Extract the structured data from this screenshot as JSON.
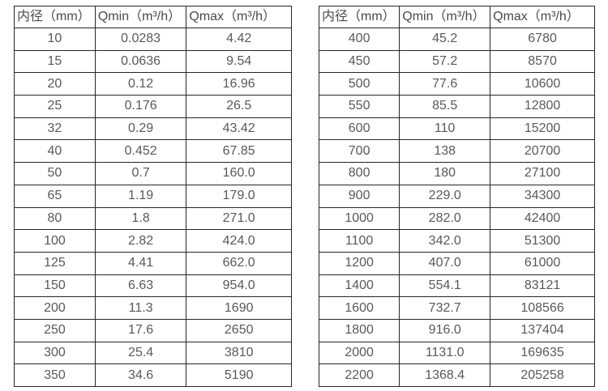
{
  "colors": {
    "border": "#262626",
    "header_text": "#4a4a4a",
    "cell_text": "#595959",
    "background": "#ffffff"
  },
  "tables": [
    {
      "name": "flow-spec-table-small-diameters",
      "headers": [
        "内径（mm）",
        "Qmin（m³/h）",
        "Qmax（m³/h）"
      ],
      "rows": [
        [
          "10",
          "0.0283",
          "4.42"
        ],
        [
          "15",
          "0.0636",
          "9.54"
        ],
        [
          "20",
          "0.12",
          "16.96"
        ],
        [
          "25",
          "0.176",
          "26.5"
        ],
        [
          "32",
          "0.29",
          "43.42"
        ],
        [
          "40",
          "0.452",
          "67.85"
        ],
        [
          "50",
          "0.7",
          "160.0"
        ],
        [
          "65",
          "1.19",
          "179.0"
        ],
        [
          "80",
          "1.8",
          "271.0"
        ],
        [
          "100",
          "2.82",
          "424.0"
        ],
        [
          "125",
          "4.41",
          "662.0"
        ],
        [
          "150",
          "6.63",
          "954.0"
        ],
        [
          "200",
          "11.3",
          "1690"
        ],
        [
          "250",
          "17.6",
          "2650"
        ],
        [
          "300",
          "25.4",
          "3810"
        ],
        [
          "350",
          "34.6",
          "5190"
        ]
      ]
    },
    {
      "name": "flow-spec-table-large-diameters",
      "headers": [
        "内径（mm）",
        "Qmin（m³/h）",
        "Qmax（m³/h）"
      ],
      "rows": [
        [
          "400",
          "45.2",
          "6780"
        ],
        [
          "450",
          "57.2",
          "8570"
        ],
        [
          "500",
          "77.6",
          "10600"
        ],
        [
          "550",
          "85.5",
          "12800"
        ],
        [
          "600",
          "110",
          "15200"
        ],
        [
          "700",
          "138",
          "20700"
        ],
        [
          "800",
          "180",
          "27100"
        ],
        [
          "900",
          "229.0",
          "34300"
        ],
        [
          "1000",
          "282.0",
          "42400"
        ],
        [
          "1100",
          "342.0",
          "51300"
        ],
        [
          "1200",
          "407.0",
          "61000"
        ],
        [
          "1400",
          "554.1",
          "83121"
        ],
        [
          "1600",
          "732.7",
          "108566"
        ],
        [
          "1800",
          "916.0",
          "137404"
        ],
        [
          "2000",
          "1131.0",
          "169635"
        ],
        [
          "2200",
          "1368.4",
          "205258"
        ]
      ]
    }
  ]
}
